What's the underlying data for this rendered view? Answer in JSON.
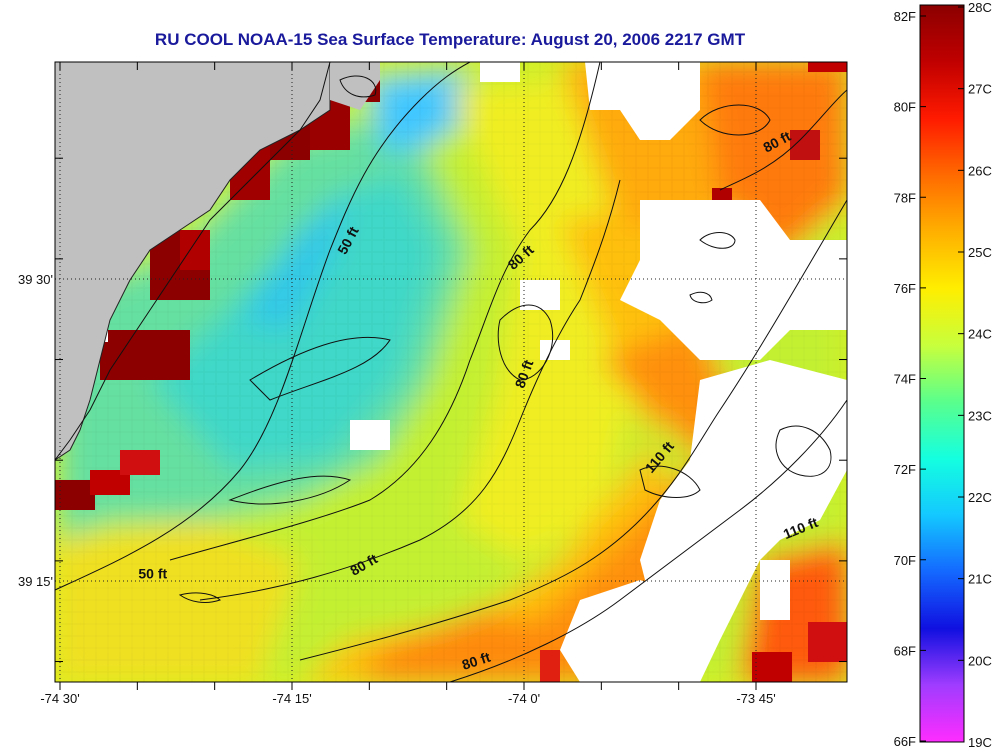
{
  "title": "RU COOL  NOAA-15  Sea Surface Temperature:  August 20, 2006 2217 GMT",
  "map": {
    "x_ticks": [
      {
        "value": -74.5,
        "label": "-74 30'"
      },
      {
        "value": -74.25,
        "label": "-74 15'"
      },
      {
        "value": -74.0,
        "label": "-74 0'"
      },
      {
        "value": -73.75,
        "label": "-73 45'"
      }
    ],
    "y_ticks": [
      {
        "value": 39.5,
        "label": "39 30'"
      },
      {
        "value": 39.25,
        "label": "39 15'"
      }
    ],
    "contour_labels": [
      {
        "text": "50 ft",
        "lon": -74.185,
        "lat": 39.53,
        "rotate": -62
      },
      {
        "text": "80 ft",
        "lon": -74.0,
        "lat": 39.515,
        "rotate": -42
      },
      {
        "text": "80 ft",
        "lon": -73.725,
        "lat": 39.61,
        "rotate": -28
      },
      {
        "text": "80 ft",
        "lon": -73.995,
        "lat": 39.42,
        "rotate": -70
      },
      {
        "text": "110 ft",
        "lon": -73.85,
        "lat": 39.35,
        "rotate": -50
      },
      {
        "text": "110 ft",
        "lon": -73.7,
        "lat": 39.29,
        "rotate": -22
      },
      {
        "text": "50 ft",
        "lon": -74.4,
        "lat": 39.252,
        "rotate": 0
      },
      {
        "text": "80 ft",
        "lon": -74.17,
        "lat": 39.26,
        "rotate": -30
      },
      {
        "text": "80 ft",
        "lon": -74.05,
        "lat": 39.18,
        "rotate": -18
      }
    ],
    "colors": {
      "land": "#c0c0c0",
      "cloud": "#ffffff",
      "grid": "#333333"
    }
  },
  "colorbar": {
    "f_labels": [
      "82F",
      "80F",
      "78F",
      "76F",
      "74F",
      "72F",
      "70F",
      "68F",
      "66F"
    ],
    "c_labels": [
      "28C",
      "27C",
      "26C",
      "25C",
      "24C",
      "23C",
      "22C",
      "21C",
      "20C",
      "19C"
    ],
    "stops": [
      "#ff2cff",
      "#a03cff",
      "#1010e0",
      "#1468ff",
      "#14c8ff",
      "#14ffe0",
      "#5aff8c",
      "#c8ff3c",
      "#ffee00",
      "#ffb000",
      "#ff6a00",
      "#ff1a00",
      "#c00000",
      "#8c0000"
    ]
  }
}
